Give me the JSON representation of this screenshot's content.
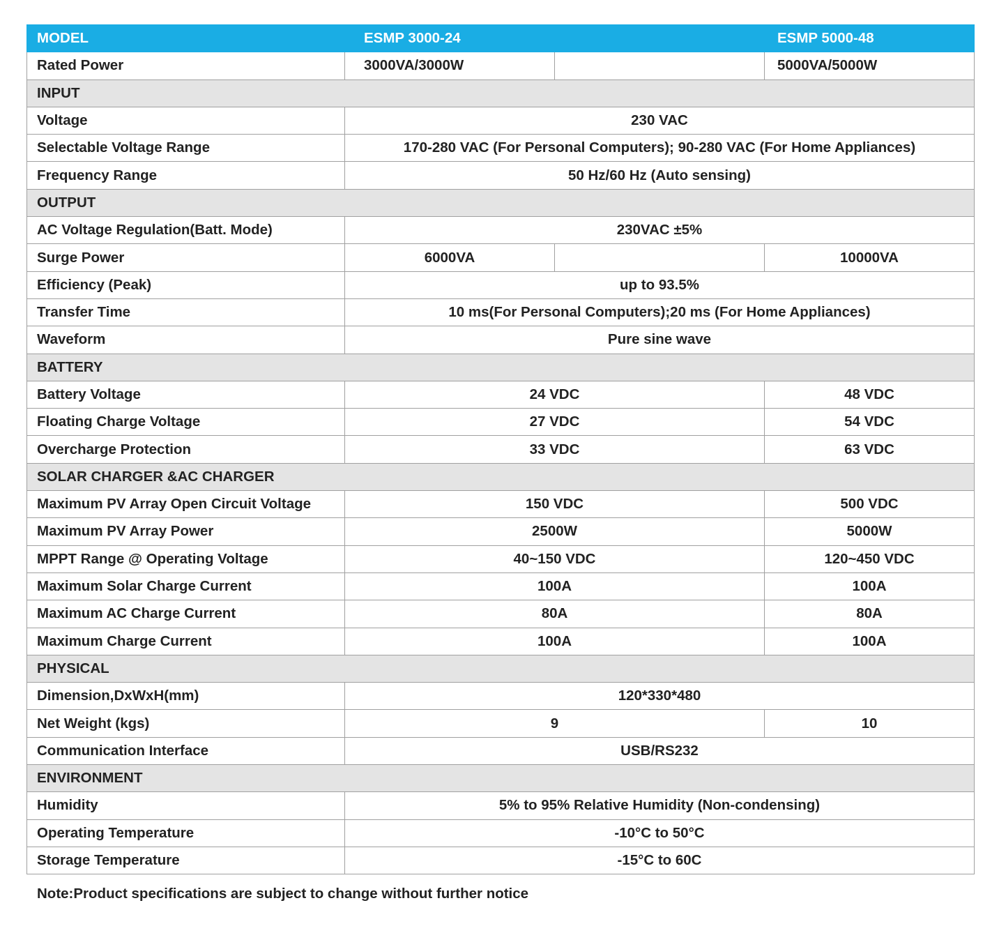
{
  "header": {
    "model": "MODEL",
    "models": [
      "ESMP 3000-24",
      "ESMP 5000-48"
    ]
  },
  "rows": [
    {
      "type": "three",
      "label": "Rated Power",
      "cells": [
        "3000VA/3000W",
        "",
        "5000VA/5000W"
      ]
    },
    {
      "type": "section",
      "label": "INPUT"
    },
    {
      "type": "span",
      "label": "Voltage",
      "cells": [
        "230 VAC"
      ]
    },
    {
      "type": "span",
      "label": "Selectable Voltage Range",
      "cells": [
        "170-280 VAC (For Personal Computers); 90-280 VAC (For Home Appliances)"
      ]
    },
    {
      "type": "span",
      "label": "Frequency Range",
      "cells": [
        "50 Hz/60 Hz (Auto sensing)"
      ]
    },
    {
      "type": "section",
      "label": "OUTPUT"
    },
    {
      "type": "span",
      "label": "AC Voltage Regulation(Batt. Mode)",
      "cells": [
        "230VAC ±5%"
      ]
    },
    {
      "type": "three",
      "label": "Surge Power",
      "cells": [
        "6000VA",
        "",
        "10000VA"
      ]
    },
    {
      "type": "span",
      "label": "Efficiency (Peak)",
      "cells": [
        "up to 93.5%"
      ]
    },
    {
      "type": "span",
      "label": "Transfer Time",
      "cells": [
        "10 ms(For Personal Computers);20 ms (For Home Appliances)"
      ]
    },
    {
      "type": "span",
      "label": "Waveform",
      "cells": [
        "Pure sine wave"
      ]
    },
    {
      "type": "section",
      "label": "BATTERY"
    },
    {
      "type": "split",
      "label": "Battery Voltage",
      "cells": [
        "24 VDC",
        "48 VDC"
      ]
    },
    {
      "type": "split",
      "label": "Floating Charge Voltage",
      "cells": [
        "27 VDC",
        "54 VDC"
      ]
    },
    {
      "type": "split",
      "label": "Overcharge Protection",
      "cells": [
        "33 VDC",
        "63 VDC"
      ]
    },
    {
      "type": "section",
      "label": "SOLAR CHARGER &AC CHARGER"
    },
    {
      "type": "split",
      "label": "Maximum PV Array Open Circuit Voltage",
      "cells": [
        "150 VDC",
        "500 VDC"
      ]
    },
    {
      "type": "split",
      "label": "Maximum PV Array Power",
      "cells": [
        "2500W",
        "5000W"
      ]
    },
    {
      "type": "split",
      "label": "MPPT Range @ Operating Voltage",
      "cells": [
        "40~150 VDC",
        "120~450 VDC"
      ]
    },
    {
      "type": "split",
      "label": "Maximum Solar Charge Current",
      "cells": [
        "100A",
        "100A"
      ]
    },
    {
      "type": "split",
      "label": "Maximum AC Charge Current",
      "cells": [
        "80A",
        "80A"
      ]
    },
    {
      "type": "split",
      "label": "Maximum Charge Current",
      "cells": [
        "100A",
        "100A"
      ]
    },
    {
      "type": "section",
      "label": "PHYSICAL"
    },
    {
      "type": "span",
      "label": "Dimension,DxWxH(mm)",
      "cells": [
        "120*330*480"
      ]
    },
    {
      "type": "split",
      "label": "Net Weight (kgs)",
      "cells": [
        "9",
        "10"
      ]
    },
    {
      "type": "span",
      "label": "Communication Interface",
      "cells": [
        "USB/RS232"
      ]
    },
    {
      "type": "section",
      "label": "ENVIRONMENT"
    },
    {
      "type": "span",
      "label": "Humidity",
      "cells": [
        "5% to 95% Relative Humidity (Non-condensing)"
      ]
    },
    {
      "type": "span",
      "label": "Operating Temperature",
      "cells": [
        "-10°C to 50°C"
      ]
    },
    {
      "type": "span",
      "label": "Storage Temperature",
      "cells": [
        "-15°C to 60C"
      ]
    }
  ],
  "note": "Note:Product specifications are subject to change without further notice"
}
